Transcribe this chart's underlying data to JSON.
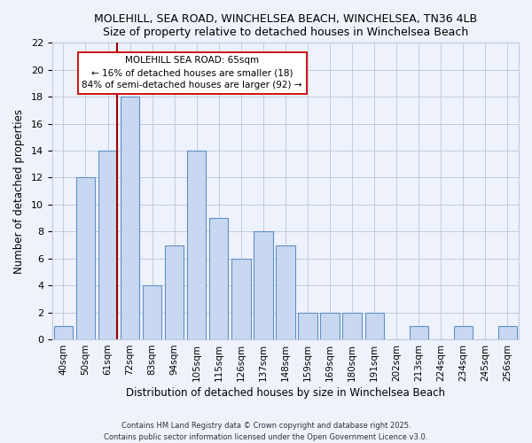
{
  "title1": "MOLEHILL, SEA ROAD, WINCHELSEA BEACH, WINCHELSEA, TN36 4LB",
  "title2": "Size of property relative to detached houses in Winchelsea Beach",
  "xlabel": "Distribution of detached houses by size in Winchelsea Beach",
  "ylabel": "Number of detached properties",
  "bar_labels": [
    "40sqm",
    "50sqm",
    "61sqm",
    "72sqm",
    "83sqm",
    "94sqm",
    "105sqm",
    "115sqm",
    "126sqm",
    "137sqm",
    "148sqm",
    "159sqm",
    "169sqm",
    "180sqm",
    "191sqm",
    "202sqm",
    "213sqm",
    "224sqm",
    "234sqm",
    "245sqm",
    "256sqm"
  ],
  "bar_values": [
    1,
    12,
    14,
    18,
    4,
    7,
    14,
    9,
    6,
    8,
    7,
    2,
    2,
    2,
    2,
    0,
    1,
    0,
    1,
    0,
    1
  ],
  "bar_color": "#c8d8f0",
  "bar_edge_color": "#6090c8",
  "ylim": [
    0,
    22
  ],
  "yticks": [
    0,
    2,
    4,
    6,
    8,
    10,
    12,
    14,
    16,
    18,
    20,
    22
  ],
  "vline_x_index": 2,
  "vline_color": "#990000",
  "annotation_title": "MOLEHILL SEA ROAD: 65sqm",
  "annotation_line1": "← 16% of detached houses are smaller (18)",
  "annotation_line2": "84% of semi-detached houses are larger (92) →",
  "footer1": "Contains HM Land Registry data © Crown copyright and database right 2025.",
  "footer2": "Contains public sector information licensed under the Open Government Licence v3.0.",
  "bg_color": "#eef2fb",
  "grid_color": "#c0cce0",
  "spine_color": "#c0cce0"
}
